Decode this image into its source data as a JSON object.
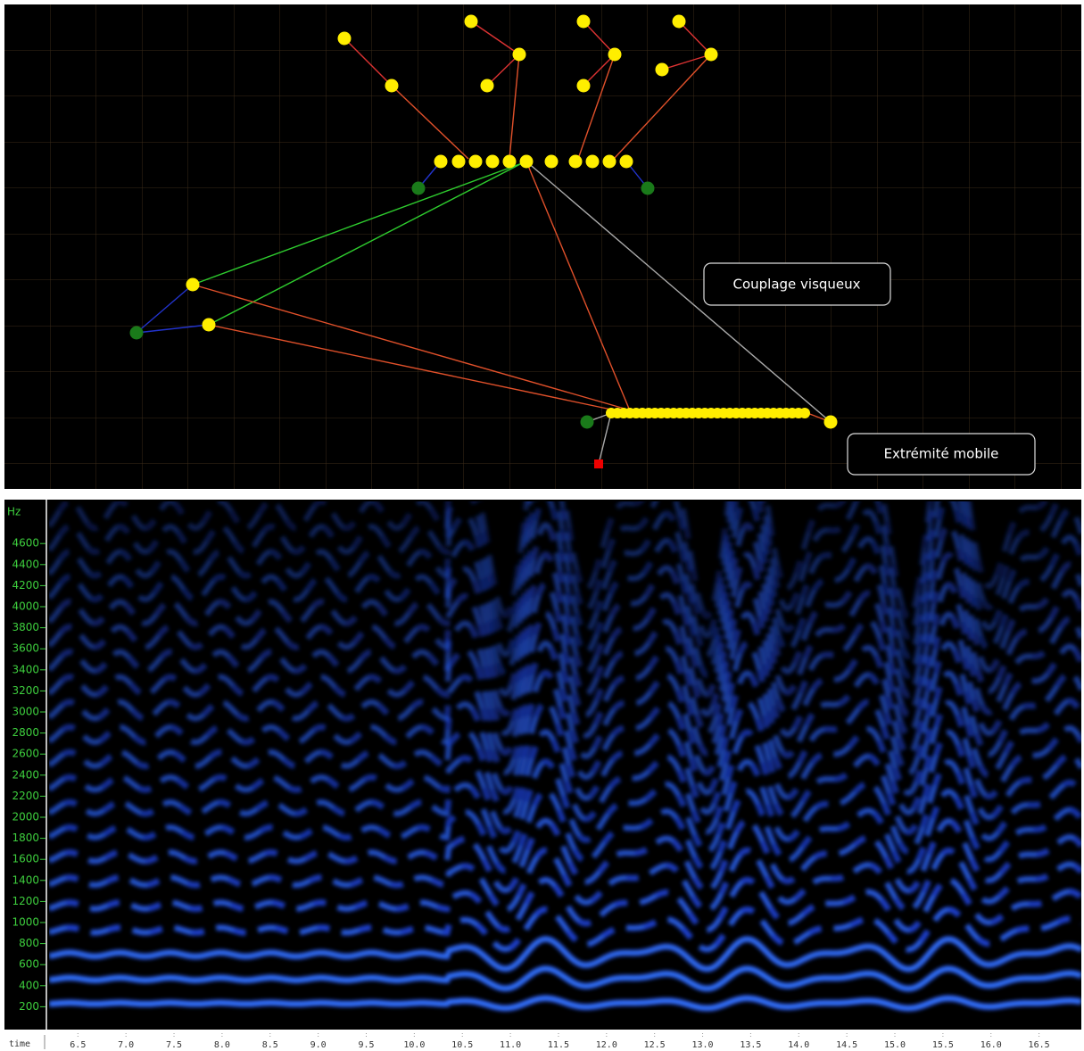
{
  "diagram": {
    "labels": [
      "Couplage visqueux",
      "Extrémité mobile"
    ]
  },
  "spectrogram": {
    "y_label": "Hz",
    "yticks": [
      200,
      400,
      600,
      800,
      1000,
      1200,
      1400,
      1600,
      1800,
      2000,
      2200,
      2400,
      2600,
      2800,
      3000,
      3200,
      3400,
      3600,
      3800,
      4000,
      4200,
      4400,
      4600
    ],
    "ylim": [
      0,
      5000
    ],
    "x_label": "time",
    "xticks": [
      6.5,
      {
        "value": 7,
        "label": "7.0"
      },
      7.5,
      {
        "value": 8,
        "label": "8.0"
      },
      8.5,
      {
        "value": 9,
        "label": "9.0"
      },
      9.5,
      {
        "value": 10,
        "label": "10.0"
      },
      10.5,
      {
        "value": 11,
        "label": "11.0"
      },
      11.5,
      {
        "value": 12,
        "label": "12.0"
      },
      12.5,
      {
        "value": 13,
        "label": "13.0"
      },
      13.5,
      {
        "value": 14,
        "label": "14.0"
      },
      14.5,
      {
        "value": 15,
        "label": "15.0"
      },
      15.5,
      {
        "value": 16,
        "label": "16.0"
      },
      16.5
    ],
    "xlim": [
      6.2,
      16.94
    ]
  }
}
